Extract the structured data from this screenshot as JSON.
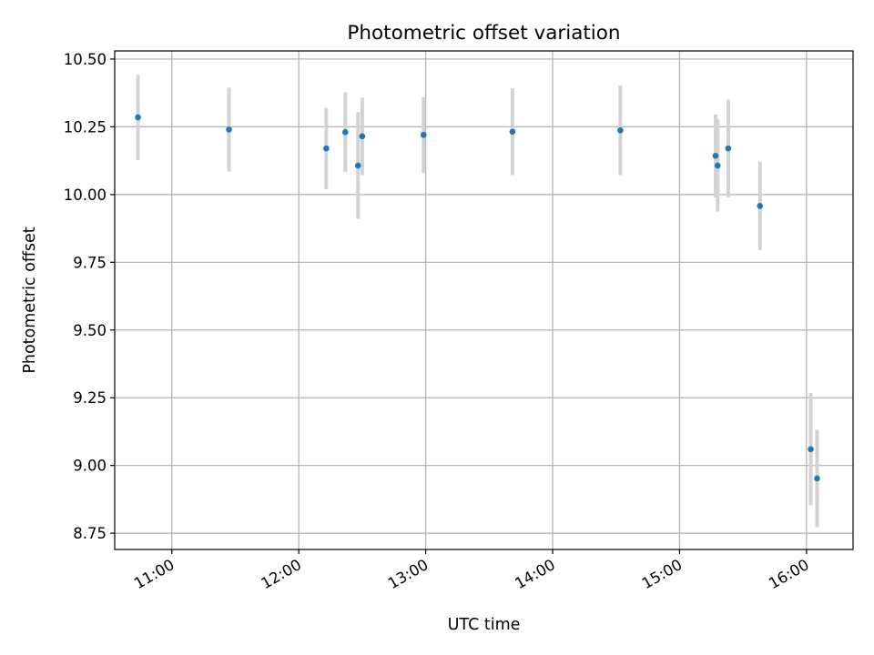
{
  "chart_data": {
    "type": "scatter",
    "title": "Photometric offset variation",
    "xlabel": "UTC time",
    "ylabel": "Photometric offset",
    "xlim": [
      "10:33",
      "16:22"
    ],
    "ylim": [
      8.69,
      10.53
    ],
    "x_ticks": [
      "11:00",
      "12:00",
      "13:00",
      "14:00",
      "15:00",
      "16:00"
    ],
    "y_ticks": [
      8.75,
      9.0,
      9.25,
      9.5,
      9.75,
      10.0,
      10.25,
      10.5
    ],
    "y_tick_labels": [
      "8.75",
      "9.00",
      "9.25",
      "9.50",
      "9.75",
      "10.00",
      "10.25",
      "10.50"
    ],
    "grid": true,
    "marker_color": "#1f77b4",
    "errorbar_color": "#d3d3d3",
    "points": [
      {
        "x": "10:44",
        "y": 10.285,
        "err": 0.157
      },
      {
        "x": "11:27",
        "y": 10.24,
        "err": 0.155
      },
      {
        "x": "12:13",
        "y": 10.17,
        "err": 0.15
      },
      {
        "x": "12:22",
        "y": 10.23,
        "err": 0.147
      },
      {
        "x": "12:28",
        "y": 10.107,
        "err": 0.197
      },
      {
        "x": "12:30",
        "y": 10.215,
        "err": 0.143
      },
      {
        "x": "12:59",
        "y": 10.22,
        "err": 0.14
      },
      {
        "x": "13:41",
        "y": 10.232,
        "err": 0.16
      },
      {
        "x": "14:32",
        "y": 10.237,
        "err": 0.165
      },
      {
        "x": "15:17",
        "y": 10.143,
        "err": 0.153
      },
      {
        "x": "15:18",
        "y": 10.107,
        "err": 0.17
      },
      {
        "x": "15:23",
        "y": 10.17,
        "err": 0.18
      },
      {
        "x": "15:38",
        "y": 9.958,
        "err": 0.163
      },
      {
        "x": "16:02",
        "y": 9.06,
        "err": 0.207
      },
      {
        "x": "16:05",
        "y": 8.952,
        "err": 0.18
      }
    ]
  }
}
